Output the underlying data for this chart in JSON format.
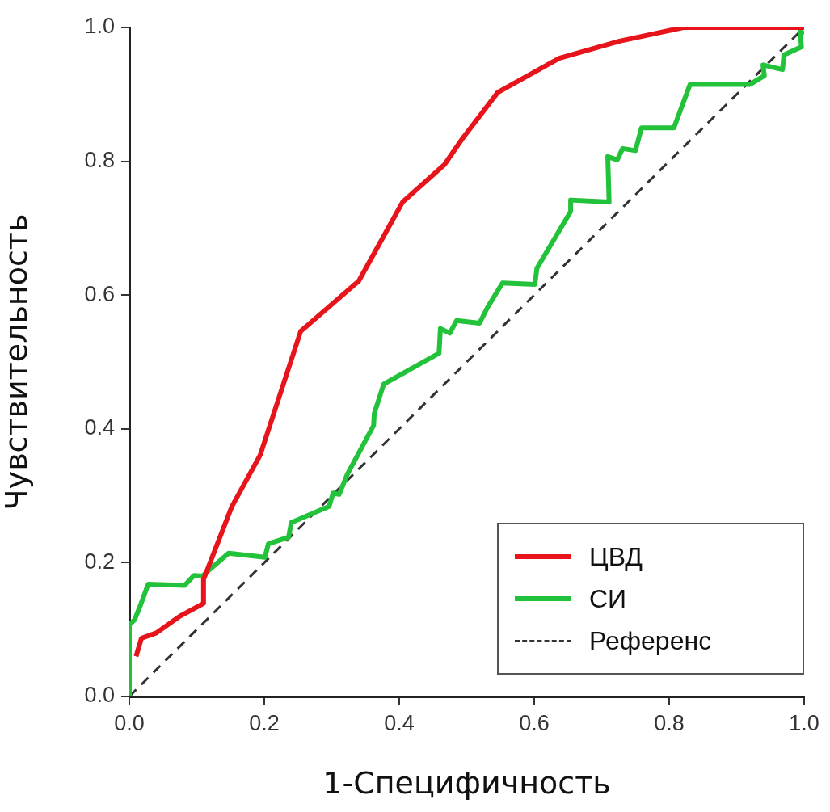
{
  "chart_data": {
    "type": "line",
    "xlabel": "1-Специфичность",
    "ylabel": "Чувствительность",
    "xlim": [
      0,
      1
    ],
    "ylim": [
      0,
      1
    ],
    "xticks": [
      {
        "value": 0,
        "label": "0.0"
      },
      {
        "value": 0.2,
        "label": "0.2"
      },
      {
        "value": 0.4,
        "label": "0.4"
      },
      {
        "value": 0.6,
        "label": "0.6"
      },
      {
        "value": 0.8,
        "label": "0.8"
      },
      {
        "value": 1,
        "label": "1.0"
      }
    ],
    "yticks": [
      {
        "value": 0,
        "label": "0.0"
      },
      {
        "value": 0.2,
        "label": "0.2"
      },
      {
        "value": 0.4,
        "label": "0.4"
      },
      {
        "value": 0.6,
        "label": "0.6"
      },
      {
        "value": 0.8,
        "label": "0.8"
      },
      {
        "value": 1,
        "label": "1.0"
      }
    ],
    "grid": false,
    "legend": "bottom right",
    "marker": "none",
    "line_style": "solid",
    "series": [
      {
        "name": "ЦВД",
        "color": "#e8141b",
        "x": [
          0.01,
          0.018,
          0.04,
          0.075,
          0.11,
          0.11,
          0.152,
          0.194,
          0.254,
          0.34,
          0.405,
          0.467,
          0.493,
          0.546,
          0.637,
          0.728,
          0.821,
          1.0
        ],
        "values": [
          0.06,
          0.087,
          0.095,
          0.12,
          0.139,
          0.175,
          0.284,
          0.361,
          0.546,
          0.621,
          0.739,
          0.795,
          0.833,
          0.903,
          0.954,
          0.98,
          1.0,
          1.0
        ]
      },
      {
        "name": "СИ",
        "color": "#22c33a",
        "x": [
          0,
          0,
          0.008,
          0.016,
          0.028,
          0.082,
          0.096,
          0.108,
          0.147,
          0.201,
          0.206,
          0.236,
          0.24,
          0.296,
          0.302,
          0.311,
          0.323,
          0.362,
          0.363,
          0.377,
          0.459,
          0.461,
          0.475,
          0.485,
          0.519,
          0.531,
          0.553,
          0.601,
          0.604,
          0.654,
          0.654,
          0.711,
          0.709,
          0.723,
          0.731,
          0.75,
          0.759,
          0.807,
          0.831,
          0.92,
          0.941,
          0.939,
          0.968,
          0.97,
          0.996,
          0.994,
          1.0
        ],
        "values": [
          0,
          0.107,
          0.115,
          0.135,
          0.168,
          0.166,
          0.181,
          0.18,
          0.214,
          0.208,
          0.228,
          0.238,
          0.26,
          0.284,
          0.304,
          0.302,
          0.332,
          0.405,
          0.423,
          0.467,
          0.513,
          0.55,
          0.543,
          0.562,
          0.558,
          0.582,
          0.618,
          0.616,
          0.64,
          0.725,
          0.742,
          0.739,
          0.807,
          0.802,
          0.819,
          0.816,
          0.85,
          0.85,
          0.915,
          0.915,
          0.928,
          0.944,
          0.937,
          0.959,
          0.971,
          0.995,
          0.99
        ]
      },
      {
        "name": "Референс",
        "color": "#333333",
        "line_style": "dashed",
        "x": [
          0,
          1
        ],
        "values": [
          0,
          1
        ]
      }
    ]
  }
}
